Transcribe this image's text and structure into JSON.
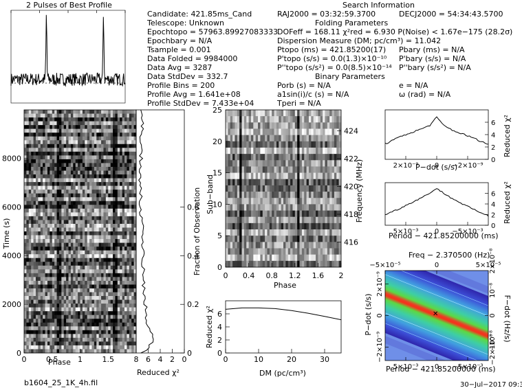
{
  "profile_title": "2 Pulses of Best Profile",
  "search_title": "Search Information",
  "folding_title": "Folding Parameters",
  "binary_title": "Binary Parameters",
  "candidate": "Candidate:  421.85ms_Cand",
  "telescope": "Telescope:  Unknown",
  "epoch_topo": "Epochtopo = 57963.89927083333",
  "epoch_bary": "Epochbary = N/A",
  "t_sample": "Tsample      =  0.001",
  "data_folded": "Data Folded    =  9984000",
  "data_avg": "Data Avg        =  3287",
  "data_std": "Data StdDev    =  332.7",
  "profile_bins": "Profile Bins   =  200",
  "profile_avg": "Profile Avg     =  1.641e+08",
  "profile_std": "Profile StdDev  =  7.433e+04",
  "ra": "RAJ2000 = 03:32:59.3700",
  "dec": "DECJ2000 = 54:34:43.5700",
  "dof": "DOFeff = 168.11  χ²red = 6.930  P(Noise) < 1.67e−175   (28.2σ)",
  "dm_line": "Dispersion Measure (DM; pc/cm³) = 11.042",
  "p_topo": "Ptopo (ms)   =  421.85200(17)",
  "pd_topo": "P'topo (s/s) = 0.0(1.3)×10⁻¹⁰",
  "pdd_topo": "P''topo (s/s²) = 0.0(8.5)×10⁻¹⁴",
  "p_bary": "Pbary (ms) = N/A",
  "pd_bary": "P'bary (s/s) = N/A",
  "pdd_bary": "P''bary (s/s²) = N/A",
  "p_orb": "Porb (s) = N/A",
  "a1": "a1sin(i)/c (s) = N/A",
  "t_peri": "Tperi = N/A",
  "ecc": "e = N/A",
  "omega": "ω (rad) = N/A",
  "footer_file": "b1604_25_1K_4h.fil",
  "footer_date": "30−Jul−2017  09:34",
  "colors": {
    "axis": "#000000",
    "hot": "#ff0000",
    "grid_bg": "#ffffff"
  },
  "chart_data": [
    {
      "type": "line",
      "title": "2 Pulses of Best Profile",
      "x": [
        0,
        0.25,
        0.5,
        0.62,
        0.75,
        1.0,
        1.25,
        1.5,
        1.62,
        1.75,
        2.0
      ],
      "series": [
        {
          "values": [
            0.1,
            0.15,
            0.2,
            1.0,
            0.2,
            0.1,
            0.15,
            0.2,
            1.0,
            0.2,
            0.1
          ]
        }
      ]
    },
    {
      "type": "heatmap",
      "xlabel": "Phase",
      "ylabel": "Time (s)",
      "x_ticks": [
        "0",
        "0.5",
        "1",
        "1.5"
      ],
      "y_ticks": [
        "0",
        "2000",
        "4000",
        "6000",
        "8000"
      ],
      "xlim": [
        0,
        2
      ],
      "ylim": [
        0,
        9984
      ]
    },
    {
      "type": "line",
      "xlabel": "Reduced χ²",
      "ylabel": "Fraction of Observation",
      "x_ticks": [
        "8",
        "6",
        "4",
        "2",
        "0"
      ],
      "y_ticks": [
        "0",
        "0.2",
        "0.4",
        "0.6"
      ],
      "x": [
        0,
        0.05,
        0.1,
        0.2,
        0.3,
        0.4,
        0.5,
        0.6,
        0.7,
        0.8,
        0.9,
        1.0
      ],
      "values": [
        7.0,
        5.0,
        6.0,
        6.5,
        6.8,
        6.9,
        7.0,
        7.2,
        7.3,
        7.2,
        7.1,
        7.0
      ]
    },
    {
      "type": "heatmap",
      "xlabel": "Phase",
      "ylabel": "Sub−band",
      "ylabel_right": "Frequency (MHz)",
      "x_ticks": [
        "0",
        "0.4",
        "0.8",
        "1.2",
        "1.6",
        "2"
      ],
      "y_ticks": [
        "0",
        "5",
        "10",
        "15",
        "20",
        "25"
      ],
      "y2_ticks": [
        "416",
        "418",
        "420",
        "422",
        "424"
      ]
    },
    {
      "type": "line",
      "xlabel": "DM (pc/cm³)",
      "ylabel": "Reduced χ²",
      "x_ticks": [
        "0",
        "10",
        "20",
        "30"
      ],
      "y_ticks": [
        "0",
        "2",
        "4",
        "6"
      ],
      "x": [
        0,
        5,
        10,
        15,
        20,
        25,
        30,
        35
      ],
      "values": [
        6.7,
        6.9,
        6.9,
        6.8,
        6.5,
        6.1,
        5.6,
        5.1
      ]
    },
    {
      "type": "line",
      "xlabel": "P−dot (s/s)",
      "ylabel": "Reduced χ²",
      "x_ticks": [
        "2×10⁻⁹",
        "0",
        "−2×10⁻⁹"
      ],
      "y_ticks": [
        "0",
        "2",
        "4",
        "6"
      ],
      "x": [
        -3,
        -2,
        -1,
        -0.4,
        0,
        0.4,
        1,
        2,
        3
      ],
      "values": [
        2.5,
        3.8,
        4.8,
        5.5,
        6.8,
        5.5,
        4.6,
        3.6,
        2.4
      ]
    },
    {
      "type": "line",
      "xlabel": "Period − 421.85200000 (ms)",
      "ylabel": "Reduced χ²",
      "x_ticks": [
        "5×10⁻³",
        "0",
        "−5×10⁻³"
      ],
      "y_ticks": [
        "0",
        "2",
        "4",
        "6"
      ],
      "x": [
        -8,
        -6,
        -4,
        -2,
        0,
        2,
        4,
        6,
        8
      ],
      "values": [
        2.0,
        3.0,
        4.2,
        5.4,
        6.9,
        5.3,
        4.0,
        2.8,
        1.8
      ]
    },
    {
      "type": "heatmap",
      "title": "Freq − 2.370500 (Hz)",
      "xlabel": "Period − 421.85200000 (ms)",
      "ylabel": "P−dot (s/s)",
      "ylabel_right": "F−dot (Hz/s)",
      "x_ticks": [
        "5×10⁻³",
        "0",
        "−5×10⁻³"
      ],
      "top_ticks": [
        "−5×10⁻⁵",
        "0",
        "5×10⁻⁵"
      ],
      "y_ticks": [
        "2×10⁻⁹",
        "0",
        "−2×10⁻⁹"
      ],
      "y2_ticks": [
        "−10⁻⁸",
        "0",
        "10⁻⁸",
        "−2×10⁻⁸",
        "2×10⁻⁸"
      ]
    }
  ]
}
